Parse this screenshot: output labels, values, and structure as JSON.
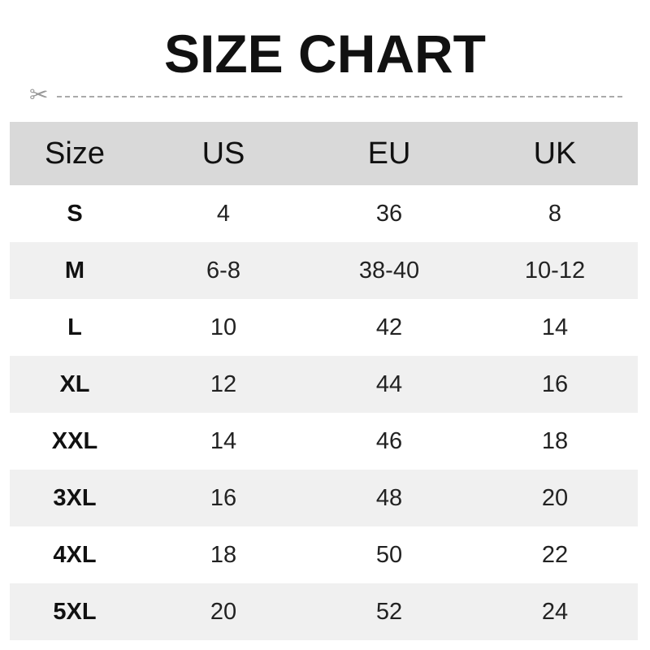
{
  "title": "SIZE CHART",
  "cut_icon": "scissors-icon",
  "colors": {
    "header_bg": "#d9d9d9",
    "alt_row_bg": "#f0f0f0"
  },
  "headers": [
    "Size",
    "US",
    "EU",
    "UK"
  ],
  "rows": [
    [
      "S",
      "4",
      "36",
      "8"
    ],
    [
      "M",
      "6-8",
      "38-40",
      "10-12"
    ],
    [
      "L",
      "10",
      "42",
      "14"
    ],
    [
      "XL",
      "12",
      "44",
      "16"
    ],
    [
      "XXL",
      "14",
      "46",
      "18"
    ],
    [
      "3XL",
      "16",
      "48",
      "20"
    ],
    [
      "4XL",
      "18",
      "50",
      "22"
    ],
    [
      "5XL",
      "20",
      "52",
      "24"
    ]
  ]
}
